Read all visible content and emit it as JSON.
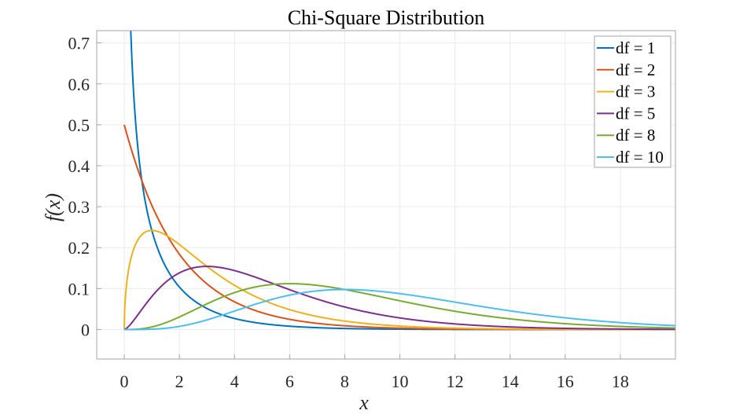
{
  "chart_data": {
    "type": "line",
    "title": "Chi-Square Distribution",
    "xlabel": "x",
    "ylabel": "f(x)",
    "xlim": [
      -1,
      20
    ],
    "ylim": [
      -0.072,
      0.73
    ],
    "xticks": [
      0,
      2,
      4,
      6,
      8,
      10,
      12,
      14,
      16,
      18
    ],
    "yticks": [
      0,
      0.1,
      0.2,
      0.3,
      0.4,
      0.5,
      0.6,
      0.7
    ],
    "xtick_labels": [
      "0",
      "2",
      "4",
      "6",
      "8",
      "10",
      "12",
      "14",
      "16",
      "18"
    ],
    "ytick_labels": [
      "0",
      "0.1",
      "0.2",
      "0.3",
      "0.4",
      "0.5",
      "0.6",
      "0.7"
    ],
    "grid": true,
    "legend_position": "top-right",
    "x_domain": [
      0,
      20
    ],
    "function": "chi-square pdf f(x) = x^(k/2-1) e^(-x/2) / (2^(k/2) Γ(k/2))",
    "series": [
      {
        "name": "df = 1",
        "df": 1,
        "color": "#0072BD"
      },
      {
        "name": "df = 2",
        "df": 2,
        "color": "#D95319"
      },
      {
        "name": "df = 3",
        "df": 3,
        "color": "#EDB120"
      },
      {
        "name": "df = 5",
        "df": 5,
        "color": "#7E2F8E"
      },
      {
        "name": "df = 8",
        "df": 8,
        "color": "#77AC30"
      },
      {
        "name": "df = 10",
        "df": 10,
        "color": "#4DBEEE"
      }
    ]
  }
}
